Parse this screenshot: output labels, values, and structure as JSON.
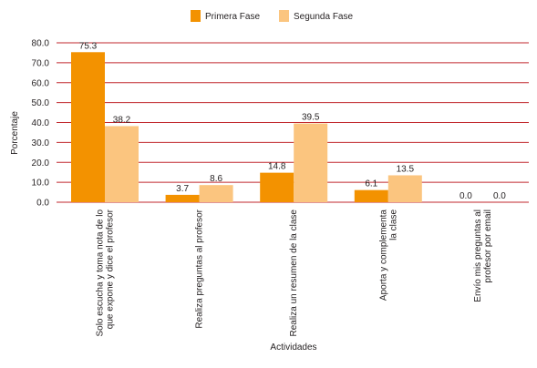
{
  "chart_data": {
    "type": "bar",
    "categories": [
      [
        "Solo escucha y toma nota de lo",
        "que expone y dice el profesor"
      ],
      [
        "Realiza preguntas al profesor"
      ],
      [
        "Realiza un resumen de la clase"
      ],
      [
        "Aporta y complementa",
        "la clase"
      ],
      [
        "Envío mis preguntas al",
        "profesor por email"
      ]
    ],
    "series": [
      {
        "name": "Primera Fase",
        "color": "#f39200",
        "values": [
          75.3,
          3.7,
          14.8,
          6.1,
          0.0
        ]
      },
      {
        "name": "Segunda Fase",
        "color": "#fbc57f",
        "values": [
          38.2,
          8.6,
          39.5,
          13.5,
          0.0
        ]
      }
    ],
    "xlabel": "Actividades",
    "ylabel": "Porcentaje",
    "ylim": [
      0,
      80
    ],
    "yticks": [
      "0.0",
      "10.0",
      "20.0",
      "30.0",
      "40.0",
      "50.0",
      "60.0",
      "70.0",
      "80.0"
    ],
    "grid": true,
    "legend_position": "top-center"
  }
}
